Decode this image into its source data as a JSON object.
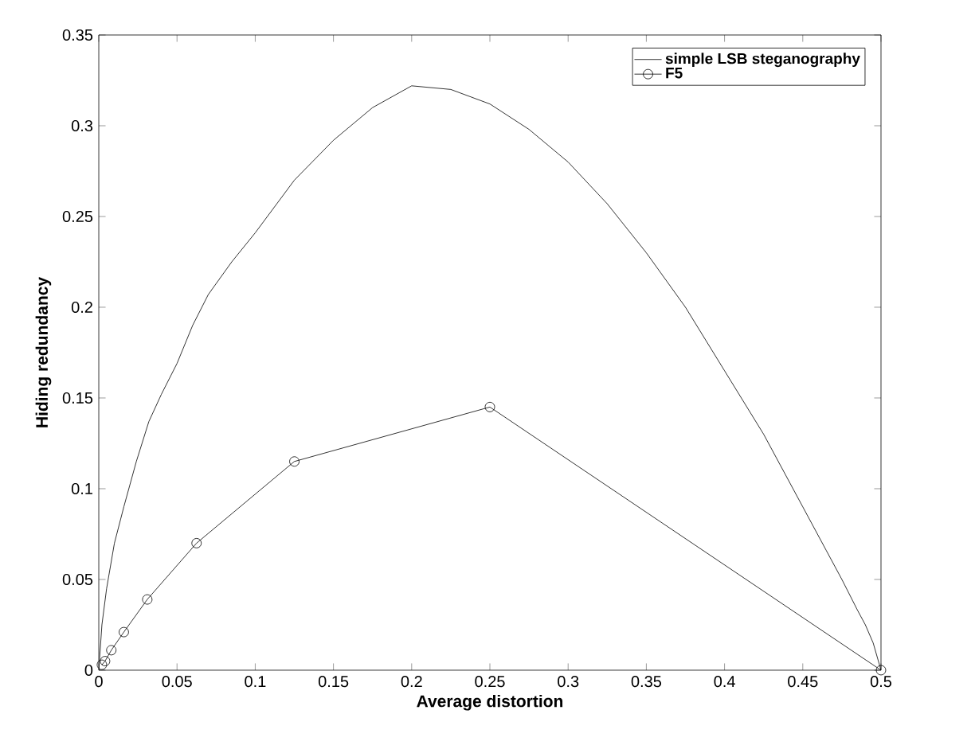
{
  "chart_data": {
    "type": "line",
    "xlabel": "Average distortion",
    "ylabel": "Hiding redundancy",
    "xlim": [
      0,
      0.5
    ],
    "ylim": [
      0,
      0.35
    ],
    "xticks": [
      0,
      0.05,
      0.1,
      0.15,
      0.2,
      0.25,
      0.3,
      0.35,
      0.4,
      0.45,
      0.5
    ],
    "yticks": [
      0,
      0.05,
      0.1,
      0.15,
      0.2,
      0.25,
      0.3,
      0.35
    ],
    "legend": "top right",
    "grid": false,
    "series": [
      {
        "name": "simple LSB steganography",
        "color": "#000000",
        "marker": "none",
        "x": [
          0,
          0.002,
          0.005,
          0.01,
          0.016,
          0.024,
          0.032,
          0.04,
          0.05,
          0.06,
          0.07,
          0.085,
          0.1,
          0.125,
          0.15,
          0.175,
          0.2,
          0.225,
          0.25,
          0.275,
          0.3,
          0.325,
          0.35,
          0.375,
          0.4,
          0.425,
          0.45,
          0.465,
          0.475,
          0.485,
          0.49,
          0.495,
          0.5
        ],
        "values": [
          0,
          0.025,
          0.045,
          0.07,
          0.09,
          0.115,
          0.137,
          0.152,
          0.169,
          0.19,
          0.207,
          0.225,
          0.241,
          0.27,
          0.292,
          0.31,
          0.322,
          0.32,
          0.312,
          0.298,
          0.28,
          0.257,
          0.23,
          0.2,
          0.165,
          0.13,
          0.09,
          0.066,
          0.05,
          0.033,
          0.025,
          0.015,
          0
        ]
      },
      {
        "name": "F5",
        "color": "#000000",
        "marker": "circle",
        "x": [
          0.002,
          0.004,
          0.008,
          0.016,
          0.031,
          0.0625,
          0.125,
          0.25,
          0.5
        ],
        "values": [
          0.003,
          0.005,
          0.011,
          0.021,
          0.039,
          0.07,
          0.115,
          0.145,
          0
        ]
      }
    ]
  }
}
